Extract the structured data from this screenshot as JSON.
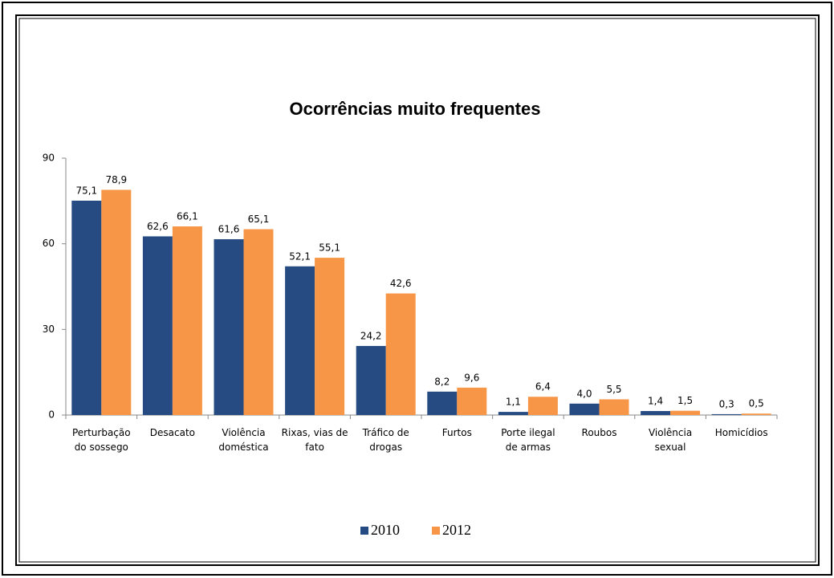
{
  "chart_data": {
    "type": "bar",
    "title": "Ocorrências muito frequentes",
    "categories": [
      [
        "Perturbação",
        "do sossego"
      ],
      [
        "Desacato"
      ],
      [
        "Violência",
        "doméstica"
      ],
      [
        "Rixas, vias de",
        "fato"
      ],
      [
        "Tráfico de",
        "drogas"
      ],
      [
        "Furtos"
      ],
      [
        "Porte ilegal",
        "de armas"
      ],
      [
        "Roubos"
      ],
      [
        "Violência",
        "sexual"
      ],
      [
        "Homicídios"
      ]
    ],
    "series": [
      {
        "name": "2010",
        "color": "#254b82",
        "values": [
          75.1,
          62.6,
          61.6,
          52.1,
          24.2,
          8.2,
          1.1,
          4.0,
          1.4,
          0.3
        ],
        "value_labels": [
          "75,1",
          "62,6",
          "61,6",
          "52,1",
          "24,2",
          "8,2",
          "1,1",
          "4,0",
          "1,4",
          "0,3"
        ]
      },
      {
        "name": "2012",
        "color": "#f79646",
        "values": [
          78.9,
          66.1,
          65.1,
          55.1,
          42.6,
          9.6,
          6.4,
          5.5,
          1.5,
          0.5
        ],
        "value_labels": [
          "78,9",
          "66,1",
          "65,1",
          "55,1",
          "42,6",
          "9,6",
          "6,4",
          "5,5",
          "1,5",
          "0,5"
        ]
      }
    ],
    "ylim": [
      0,
      90
    ],
    "yticks": [
      0,
      30,
      60,
      90
    ],
    "grid": false,
    "legend": "bottom"
  }
}
